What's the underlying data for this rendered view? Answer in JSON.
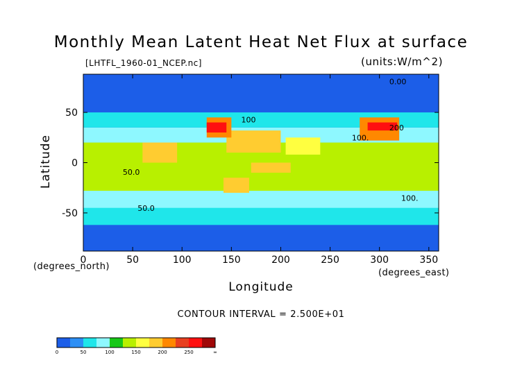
{
  "chart_data": {
    "type": "heatmap",
    "title": "Monthly Mean Latent Heat Net Flux at surface",
    "subtitle": "[LHTFL_1960-01_NCEP.nc]",
    "units": "(units:W/m^2)",
    "xlabel": "Longitude",
    "ylabel": "Latitude",
    "x_unit_label": "(degrees_east)",
    "y_unit_label": "(degrees_north)",
    "xlim": [
      0,
      360
    ],
    "ylim": [
      -88,
      88
    ],
    "x_ticks": [
      0,
      50,
      100,
      150,
      200,
      250,
      300,
      350
    ],
    "y_ticks": [
      -50,
      0,
      50
    ],
    "contour_interval_text": "CONTOUR INTERVAL = 2.500E+01",
    "contour_labels": [
      "0.00",
      "100",
      "100.",
      "200",
      "50.0",
      "50.0",
      "100."
    ],
    "colorbar": {
      "ticks": [
        "0",
        "50",
        "100",
        "150",
        "200",
        "250",
        "∞"
      ],
      "colors": [
        "#1c5ee8",
        "#2d8ff5",
        "#1fe6ea",
        "#8ef8ff",
        "#18c818",
        "#b8f000",
        "#ffff40",
        "#ffcc30",
        "#ff8800",
        "#e84020",
        "#ff1010",
        "#a00808"
      ]
    },
    "regions": [
      {
        "lon": [
          0,
          360
        ],
        "lat": [
          -88,
          88
        ],
        "value": 20
      },
      {
        "lon": [
          0,
          360
        ],
        "lat": [
          -62,
          -40
        ],
        "value": 55
      },
      {
        "lon": [
          0,
          360
        ],
        "lat": [
          -45,
          -20
        ],
        "value": 90
      },
      {
        "lon": [
          0,
          360
        ],
        "lat": [
          -28,
          20
        ],
        "value": 140
      },
      {
        "lon": [
          0,
          360
        ],
        "lat": [
          20,
          35
        ],
        "value": 95
      },
      {
        "lon": [
          0,
          360
        ],
        "lat": [
          35,
          50
        ],
        "value": 55
      },
      {
        "lon": [
          60,
          95
        ],
        "lat": [
          0,
          20
        ],
        "value": 175
      },
      {
        "lon": [
          145,
          200
        ],
        "lat": [
          10,
          32
        ],
        "value": 185
      },
      {
        "lon": [
          205,
          240
        ],
        "lat": [
          8,
          25
        ],
        "value": 170
      },
      {
        "lon": [
          170,
          210
        ],
        "lat": [
          -10,
          0
        ],
        "value": 185
      },
      {
        "lon": [
          142,
          168
        ],
        "lat": [
          -30,
          -15
        ],
        "value": 190
      },
      {
        "lon": [
          125,
          150
        ],
        "lat": [
          25,
          45
        ],
        "value": 215
      },
      {
        "lon": [
          125,
          145
        ],
        "lat": [
          30,
          40
        ],
        "value": 265
      },
      {
        "lon": [
          280,
          320
        ],
        "lat": [
          22,
          45
        ],
        "value": 220
      },
      {
        "lon": [
          288,
          318
        ],
        "lat": [
          32,
          40
        ],
        "value": 270
      },
      {
        "lon": [
          0,
          360
        ],
        "lat": [
          65,
          88
        ],
        "value": 10
      }
    ]
  }
}
